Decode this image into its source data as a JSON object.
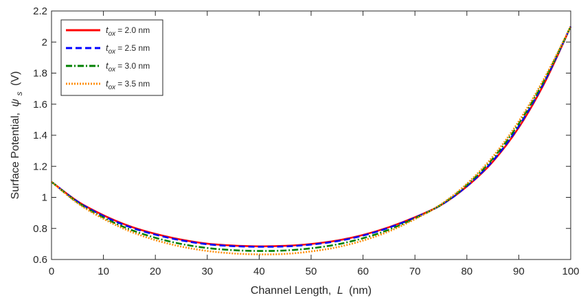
{
  "chart_data": {
    "type": "line",
    "title": "",
    "xlabel": {
      "prefix": "Channel Length,",
      "symbol": "L",
      "unit": "(nm)"
    },
    "ylabel": {
      "prefix": "Surface Potential,",
      "symbol": "ψ",
      "subscript": "s",
      "unit": "(V)"
    },
    "xlim": [
      0,
      100
    ],
    "ylim": [
      0.6,
      2.2
    ],
    "xticks": [
      "0",
      "10",
      "20",
      "30",
      "40",
      "50",
      "60",
      "70",
      "80",
      "90",
      "100"
    ],
    "yticks": [
      "0.6",
      "0.8",
      "1",
      "1.2",
      "1.4",
      "1.6",
      "1.8",
      "2",
      "2.2"
    ],
    "grid": false,
    "legend_position": "top-left",
    "x": [
      0,
      5,
      10,
      15,
      20,
      25,
      30,
      35,
      40,
      45,
      50,
      55,
      60,
      65,
      70,
      75,
      80,
      85,
      90,
      95,
      100
    ],
    "series": [
      {
        "name": "= 2.0 nm",
        "symbol": "t",
        "subscript": "ox",
        "color": "#ff0000",
        "style": "solid",
        "values": [
          1.1,
          0.975,
          0.885,
          0.815,
          0.765,
          0.728,
          0.702,
          0.69,
          0.685,
          0.688,
          0.7,
          0.722,
          0.758,
          0.808,
          0.872,
          0.95,
          1.07,
          1.23,
          1.45,
          1.74,
          2.1
        ]
      },
      {
        "name": "= 2.5 nm",
        "symbol": "t",
        "subscript": "ox",
        "color": "#0000ff",
        "style": "dashed",
        "values": [
          1.1,
          0.973,
          0.88,
          0.81,
          0.76,
          0.723,
          0.698,
          0.686,
          0.682,
          0.684,
          0.696,
          0.718,
          0.754,
          0.805,
          0.87,
          0.95,
          1.072,
          1.235,
          1.458,
          1.748,
          2.1
        ]
      },
      {
        "name": "= 3.0 nm",
        "symbol": "t",
        "subscript": "ox",
        "color": "#008000",
        "style": "dashdot",
        "values": [
          1.1,
          0.968,
          0.87,
          0.795,
          0.74,
          0.7,
          0.674,
          0.66,
          0.655,
          0.658,
          0.672,
          0.697,
          0.737,
          0.792,
          0.865,
          0.952,
          1.08,
          1.25,
          1.475,
          1.76,
          2.1
        ]
      },
      {
        "name": "= 3.5 nm",
        "symbol": "t",
        "subscript": "ox",
        "color": "#ff8c00",
        "style": "dotted",
        "values": [
          1.1,
          0.963,
          0.862,
          0.783,
          0.725,
          0.683,
          0.655,
          0.639,
          0.633,
          0.636,
          0.652,
          0.679,
          0.722,
          0.781,
          0.86,
          0.955,
          1.088,
          1.262,
          1.49,
          1.772,
          2.1
        ]
      }
    ]
  }
}
